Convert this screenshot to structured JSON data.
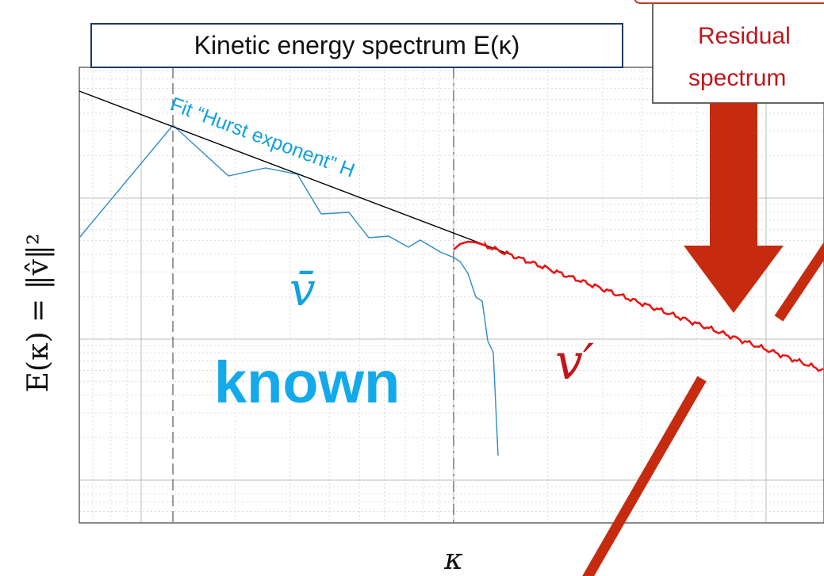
{
  "title": "Kinetic energy spectrum E(κ)",
  "residual_box": {
    "line1": "Residual",
    "line2": "spectrum"
  },
  "fit_label": "Fit “Hurst exponent” H",
  "mean_label": "v̄",
  "known_label": "known",
  "fluct_label": "v′",
  "y_axis_label": "E(κ) = ‖v̂‖²",
  "x_axis_label": "κ"
}
